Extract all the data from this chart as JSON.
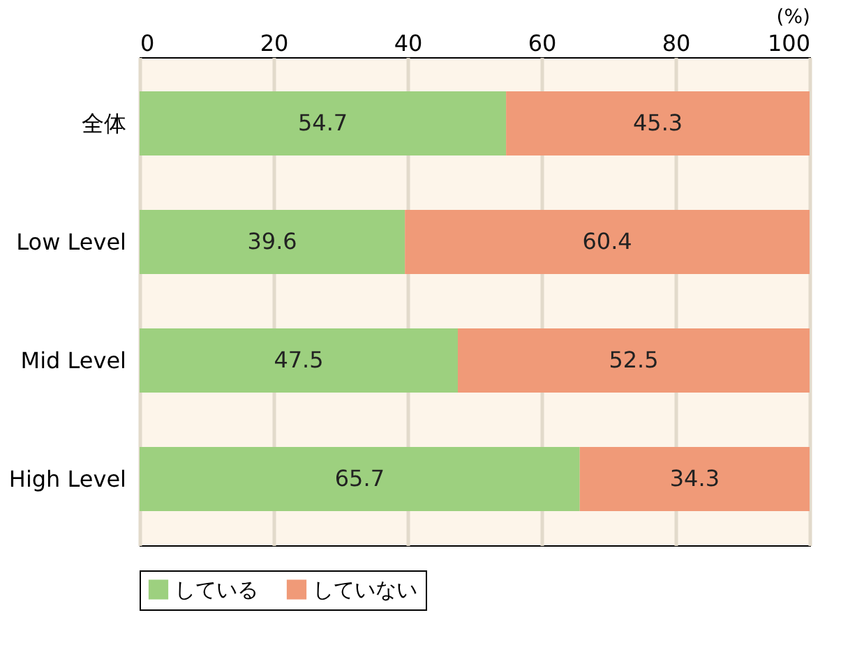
{
  "chart_data": {
    "type": "bar",
    "orientation": "horizontal",
    "stacked": true,
    "categories": [
      "全体",
      "Low Level",
      "Mid Level",
      "High Level"
    ],
    "series": [
      {
        "name": "している",
        "color": "#9dd07f",
        "values": [
          54.7,
          39.6,
          47.5,
          65.7
        ]
      },
      {
        "name": "していない",
        "color": "#f09a78",
        "values": [
          45.3,
          60.4,
          52.5,
          34.3
        ]
      }
    ],
    "xlabel": "(%)",
    "xlim": [
      0,
      100
    ],
    "xticks": [
      0,
      20,
      40,
      60,
      80,
      100
    ],
    "grid": "x",
    "legend": "bottom",
    "data_labels": true
  }
}
